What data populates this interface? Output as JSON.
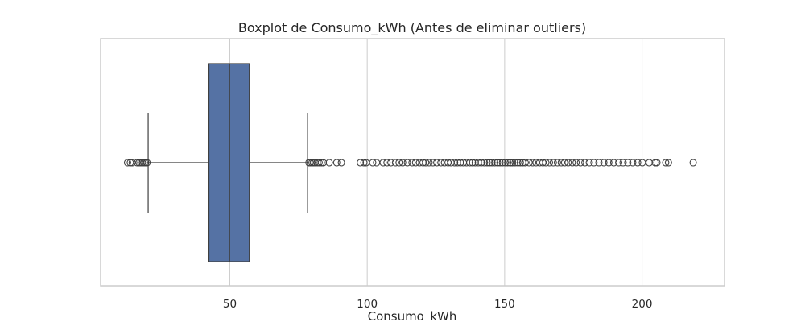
{
  "chart_data": {
    "type": "boxplot",
    "title": "Boxplot de Consumo_kWh (Antes de eliminar outliers)",
    "xlabel": "Consumo_kWh",
    "ylabel": "",
    "orientation": "horizontal",
    "xlim": [
      3,
      230
    ],
    "xticks": [
      50,
      100,
      150,
      200
    ],
    "grid": true,
    "box_color": "#5572a4",
    "line_color": "#3f3f3f",
    "box": {
      "q1": 42.4,
      "median": 49.9,
      "q3": 57.1,
      "whisker_low": 20.3,
      "whisker_high": 78.3
    },
    "outliers": [
      12.8,
      13.8,
      14.5,
      16.3,
      17.0,
      17.6,
      18.2,
      18.8,
      19.4,
      19.9,
      78.8,
      79.3,
      79.9,
      80.4,
      81.0,
      81.8,
      82.5,
      83.3,
      84.0,
      86.2,
      88.9,
      90.6,
      97.5,
      98.8,
      99.6,
      102.0,
      103.4,
      105.8,
      107.2,
      108.6,
      110.3,
      111.6,
      112.9,
      114.6,
      116.3,
      117.6,
      119.0,
      120.3,
      121.3,
      122.5,
      123.9,
      125.3,
      126.8,
      128.1,
      129.4,
      130.5,
      131.8,
      132.8,
      133.9,
      135.0,
      136.1,
      137.3,
      138.3,
      139.3,
      140.4,
      141.5,
      142.6,
      143.6,
      144.5,
      145.4,
      146.4,
      147.4,
      148.3,
      149.2,
      150.2,
      151.1,
      152.0,
      152.9,
      153.8,
      154.8,
      155.7,
      156.6,
      157.5,
      158.9,
      160.2,
      161.4,
      162.7,
      163.9,
      165.0,
      166.3,
      167.7,
      169.2,
      170.6,
      171.8,
      173.1,
      174.6,
      176.0,
      177.6,
      179.2,
      180.8,
      182.5,
      184.3,
      186.1,
      187.9,
      189.7,
      191.5,
      193.1,
      194.8,
      196.6,
      198.4,
      200.1,
      202.6,
      204.8,
      205.4,
      208.6,
      209.6,
      218.6
    ]
  }
}
